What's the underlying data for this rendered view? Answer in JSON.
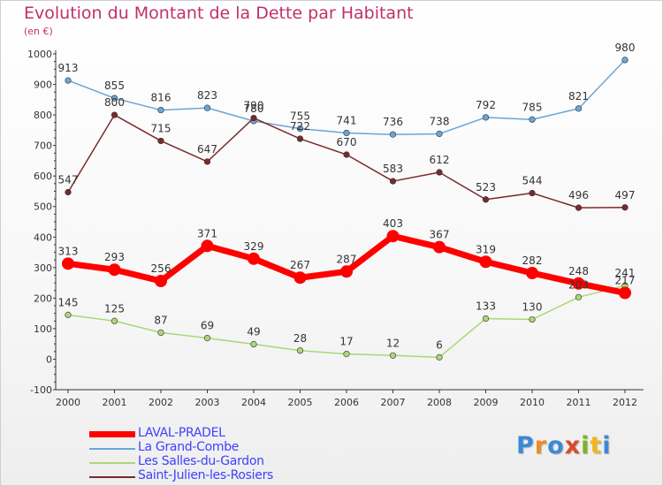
{
  "title": "Evolution du Montant de la Dette par Habitant",
  "subtitle": "(en €)",
  "logo": {
    "text": "Proxiti",
    "colors": [
      "#3b8ad6",
      "#f08a1c",
      "#3b8ad6",
      "#d94a2b",
      "#7ab51d",
      "#f0b71c",
      "#3b8ad6"
    ]
  },
  "chart_data": {
    "type": "line",
    "title": "Evolution du Montant de la Dette par Habitant",
    "subtitle": "(en €)",
    "x": [
      "2000",
      "2001",
      "2002",
      "2003",
      "2004",
      "2005",
      "2006",
      "2007",
      "2008",
      "2009",
      "2010",
      "2011",
      "2012"
    ],
    "ylim": [
      -100,
      1000
    ],
    "yticks": [
      -100,
      0,
      100,
      200,
      300,
      400,
      500,
      600,
      700,
      800,
      900,
      1000
    ],
    "grid": false,
    "legend_position": "bottom-left",
    "series": [
      {
        "name": "LAVAL-PRADEL",
        "color": "#ff0000",
        "values": [
          313,
          293,
          256,
          371,
          329,
          267,
          287,
          403,
          367,
          319,
          282,
          248,
          217
        ]
      },
      {
        "name": "La Grand-Combe",
        "color": "#6aa6d6",
        "values": [
          913,
          855,
          816,
          823,
          780,
          755,
          741,
          736,
          738,
          792,
          785,
          821,
          980
        ]
      },
      {
        "name": "Les Salles-du-Gardon",
        "color": "#a8d878",
        "values": [
          145,
          125,
          87,
          69,
          49,
          28,
          17,
          12,
          6,
          133,
          130,
          203,
          241
        ]
      },
      {
        "name": "Saint-Julien-les-Rosiers",
        "color": "#7a2a2a",
        "values": [
          547,
          800,
          715,
          647,
          790,
          722,
          670,
          583,
          612,
          523,
          544,
          496,
          497
        ]
      }
    ]
  }
}
